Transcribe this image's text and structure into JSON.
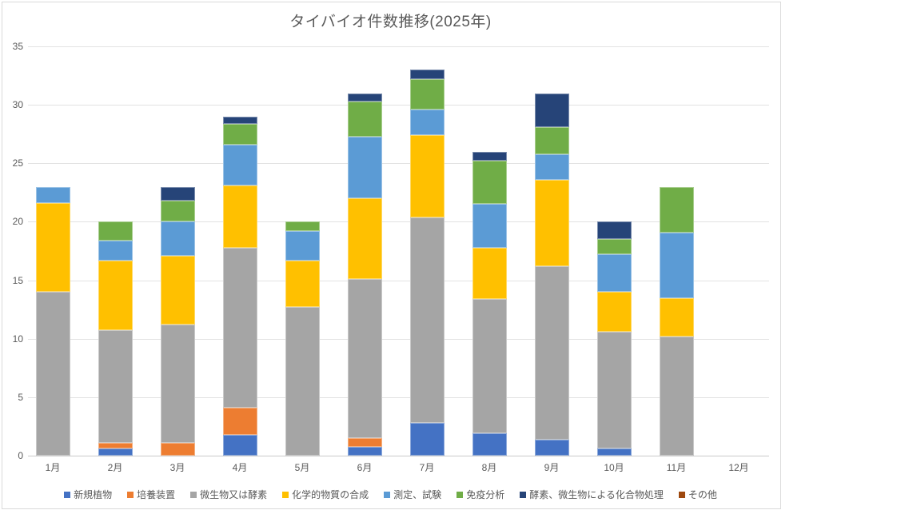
{
  "chart_data": {
    "type": "bar",
    "stacked": true,
    "title": "タイバイオ件数推移(2025年)",
    "xlabel": "",
    "ylabel": "",
    "ylim": [
      0,
      35
    ],
    "y_ticks": [
      0,
      5,
      10,
      15,
      20,
      25,
      30,
      35
    ],
    "grid": true,
    "legend_position": "bottom",
    "categories": [
      "1月",
      "2月",
      "3月",
      "4月",
      "5月",
      "6月",
      "7月",
      "8月",
      "9月",
      "10月",
      "11月",
      "12月"
    ],
    "series": [
      {
        "id": "new-plants",
        "name": "新規植物",
        "color": "#4472C4",
        "values": [
          0,
          0.6,
          0,
          1.8,
          0,
          0.75,
          2.8,
          1.9,
          1.4,
          0.6,
          0,
          0
        ]
      },
      {
        "id": "culture-equipment",
        "name": "培養装置",
        "color": "#ED7D31",
        "values": [
          0,
          0.5,
          1.1,
          2.3,
          0,
          0.75,
          0,
          0,
          0,
          0,
          0,
          0
        ]
      },
      {
        "id": "microorganisms-or-enzymes",
        "name": "微生物又は酵素",
        "color": "#A5A5A5",
        "values": [
          14.0,
          9.6,
          10.1,
          13.7,
          12.7,
          13.6,
          17.6,
          11.5,
          14.8,
          10.0,
          10.2,
          0
        ]
      },
      {
        "id": "chemical-synthesis",
        "name": "化学的物質の合成",
        "color": "#FFC000",
        "values": [
          7.6,
          6.0,
          5.9,
          5.3,
          4.0,
          6.9,
          7.0,
          4.4,
          7.4,
          3.4,
          3.3,
          0
        ]
      },
      {
        "id": "measurement-testing",
        "name": "測定、試験",
        "color": "#5B9BD5",
        "values": [
          1.4,
          1.7,
          2.9,
          3.5,
          2.5,
          5.3,
          2.2,
          3.7,
          2.2,
          3.2,
          5.6,
          0
        ]
      },
      {
        "id": "immunoassay",
        "name": "免疫分析",
        "color": "#70AD47",
        "values": [
          0,
          1.6,
          1.8,
          1.8,
          0.8,
          3.0,
          2.6,
          3.7,
          2.3,
          1.3,
          3.9,
          0
        ]
      },
      {
        "id": "enzyme-compound-processing",
        "name": "酵素、微生物による化合物処理",
        "color": "#264478",
        "values": [
          0,
          0,
          1.2,
          0.6,
          0,
          0.7,
          0.8,
          0.8,
          2.9,
          1.5,
          0,
          0
        ]
      },
      {
        "id": "other",
        "name": "その他",
        "color": "#9E480E",
        "values": [
          0,
          0,
          0,
          0,
          0,
          0,
          0,
          0,
          0,
          0,
          0,
          0
        ]
      }
    ],
    "totals": [
      23,
      20,
      23,
      29,
      20,
      31,
      33,
      26,
      31,
      20,
      23,
      0
    ]
  }
}
